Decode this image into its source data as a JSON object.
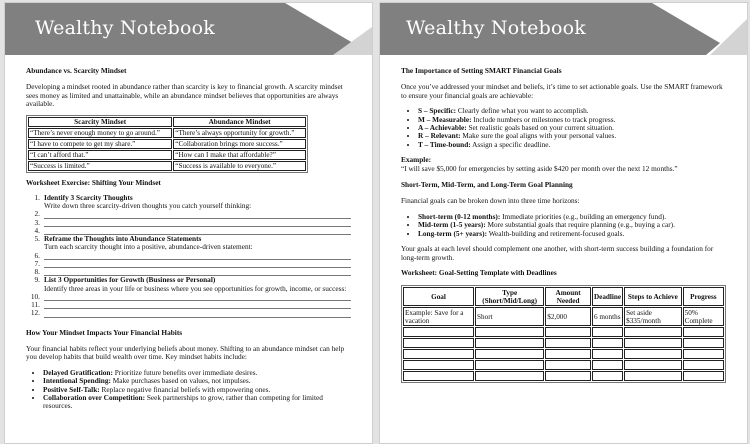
{
  "header": {
    "title": "Wealthy Notebook",
    "colors": {
      "band": "#808080",
      "triangle": "#d3d3d3"
    }
  },
  "left": {
    "h1": "Abundance vs. Scarcity Mindset",
    "p1": "Developing a mindset rooted in abundance rather than scarcity is key to financial growth. A scarcity mindset sees money as limited and unattainable, while an abundance mindset believes that opportunities are always available.",
    "table": {
      "headers": [
        "Scarcity Mindset",
        "Abundance Mindset"
      ],
      "rows": [
        [
          "“There’s never enough money to go around.”",
          "“There’s always opportunity for growth.”"
        ],
        [
          "“I have to compete to get my share.”",
          "“Collaboration brings more success.”"
        ],
        [
          "“I can’t afford that.”",
          "“How can I make that affordable?”"
        ],
        [
          "“Success is limited.”",
          "“Success is available to everyone.”"
        ]
      ]
    },
    "h2": "Worksheet Exercise: Shifting Your Mindset",
    "exercise": [
      {
        "num": "1.",
        "title": "Identify 3 Scarcity Thoughts",
        "desc": "Write down three scarcity-driven thoughts you catch yourself thinking:",
        "lines": [
          "2.",
          "3.",
          "4."
        ]
      },
      {
        "num": "5.",
        "title": "Reframe the Thoughts into Abundance Statements",
        "desc": "Turn each scarcity thought into a positive, abundance-driven statement:",
        "lines": [
          "6.",
          "7.",
          "8."
        ]
      },
      {
        "num": "9.",
        "title": "List 3 Opportunities for Growth (Business or Personal)",
        "desc": "Identify three areas in your life or business where you see opportunities for growth, income, or success:",
        "lines": [
          "10.",
          "11.",
          "12."
        ]
      }
    ],
    "h3": "How Your Mindset Impacts Your Financial Habits",
    "p2": "Your financial habits reflect your underlying beliefs about money. Shifting to an abundance mindset can help you develop habits that build wealth over time. Key mindset habits include:",
    "habits": [
      {
        "b": "Delayed Gratification:",
        "t": " Prioritize future benefits over immediate desires."
      },
      {
        "b": "Intentional Spending:",
        "t": " Make purchases based on values, not impulses."
      },
      {
        "b": "Positive Self-Talk:",
        "t": " Replace negative financial beliefs with empowering ones."
      },
      {
        "b": "Collaboration over Competition:",
        "t": " Seek partnerships to grow, rather than competing for limited resources."
      }
    ]
  },
  "right": {
    "h1": "The Importance of Setting SMART Financial Goals",
    "p1": "Once you’ve addressed your mindset and beliefs, it’s time to set actionable goals. Use the SMART framework to ensure your financial goals are achievable:",
    "smart": [
      {
        "b": "S – Specific:",
        "t": " Clearly define what you want to accomplish."
      },
      {
        "b": "M – Measurable:",
        "t": " Include numbers or milestones to track progress."
      },
      {
        "b": "A – Achievable:",
        "t": " Set realistic goals based on your current situation."
      },
      {
        "b": "R – Relevant:",
        "t": " Make sure the goal aligns with your personal values."
      },
      {
        "b": "T – Time-bound:",
        "t": " Assign a specific deadline."
      }
    ],
    "example_label": "Example:",
    "example": "“I will save $5,000 for emergencies by setting aside $420 per month over the next 12 months.”",
    "h2": "Short-Term, Mid-Term, and Long-Term Goal Planning",
    "p2": "Financial goals can be broken down into three time horizons:",
    "horizons": [
      {
        "b": "Short-term (0-12 months):",
        "t": " Immediate priorities (e.g., building an emergency fund)."
      },
      {
        "b": "Mid-term (1-5 years):",
        "t": " More substantial goals that require planning (e.g., buying a car)."
      },
      {
        "b": "Long-term (5+ years):",
        "t": " Wealth-building and retirement-focused goals."
      }
    ],
    "p3": "Your goals at each level should complement one another, with short-term success building a foundation for long-term growth.",
    "h3": "Worksheet: Goal-Setting Template with Deadlines",
    "table": {
      "headers": [
        "Goal",
        "Type (Short/Mid/Long)",
        "Amount Needed",
        "Deadline",
        "Steps to Achieve",
        "Progress"
      ],
      "rows": [
        [
          "Example: Save for a vacation",
          "Short",
          "$2,000",
          "6 months",
          "Set aside $335/month",
          "50% Complete"
        ]
      ],
      "empty_rows": 5
    }
  }
}
